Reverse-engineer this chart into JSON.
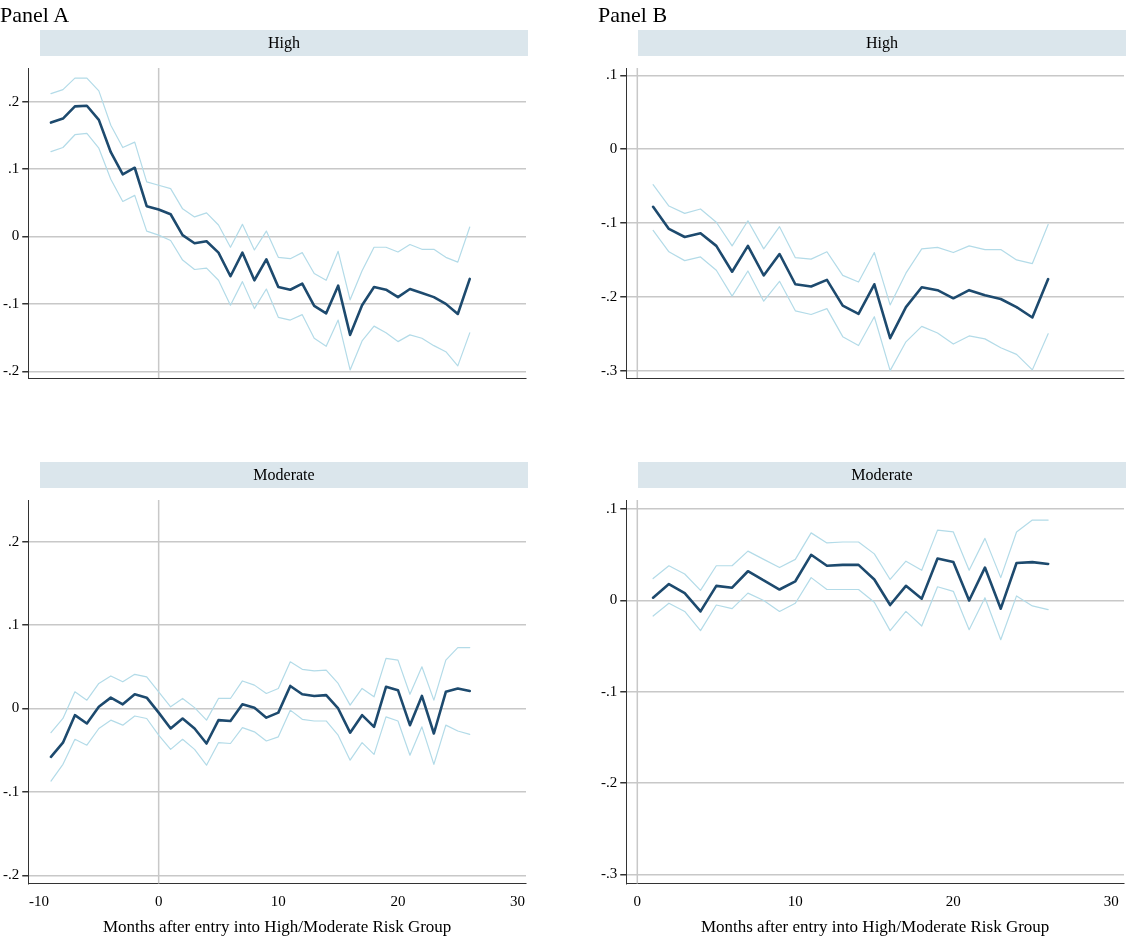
{
  "chart_data": [
    {
      "type": "line",
      "title": "Panel A",
      "subtitle": "High",
      "xlim": [
        -10.9,
        30.7
      ],
      "xticks": [
        -10,
        0,
        10,
        20,
        30
      ],
      "ylim": [
        -0.21,
        0.25
      ],
      "yticks": [
        {
          "value": 0.2,
          "label": ".2"
        },
        {
          "value": 0.1,
          "label": ".1"
        },
        {
          "value": 0,
          "label": "0"
        },
        {
          "value": -0.1,
          "label": "-.1"
        },
        {
          "value": -0.2,
          "label": "-.2"
        }
      ],
      "grid": "y",
      "tick_labels": "y",
      "legend": false,
      "ref_lines": [
        {
          "axis": "x",
          "value": 0,
          "color": "#c8c8c8"
        }
      ],
      "x": [
        -9,
        -8,
        -7,
        -6,
        -5,
        -4,
        -3,
        -2,
        -1,
        0,
        1,
        2,
        3,
        4,
        5,
        6,
        7,
        8,
        9,
        10,
        11,
        12,
        13,
        14,
        15,
        16,
        17,
        18,
        19,
        20,
        21,
        22,
        23,
        24,
        25,
        26
      ],
      "series": [
        {
          "color": "#1d4a6e",
          "values": [
            0.169,
            0.175,
            0.193,
            0.194,
            0.173,
            0.125,
            0.092,
            0.102,
            0.045,
            0.04,
            0.033,
            0.002,
            -0.01,
            -0.007,
            -0.024,
            -0.059,
            -0.024,
            -0.065,
            -0.034,
            -0.075,
            -0.079,
            -0.07,
            -0.103,
            -0.114,
            -0.073,
            -0.146,
            -0.102,
            -0.075,
            -0.079,
            -0.09,
            -0.078,
            -0.084,
            -0.09,
            -0.1,
            -0.115,
            -0.063
          ]
        },
        {
          "color": "#b3dbe8",
          "values": [
            0.212,
            0.218,
            0.235,
            0.235,
            0.216,
            0.165,
            0.132,
            0.14,
            0.081,
            0.076,
            0.071,
            0.041,
            0.029,
            0.035,
            0.017,
            -0.016,
            0.018,
            -0.02,
            0.008,
            -0.031,
            -0.033,
            -0.024,
            -0.055,
            -0.065,
            -0.022,
            -0.094,
            -0.051,
            -0.016,
            -0.016,
            -0.023,
            -0.012,
            -0.019,
            -0.019,
            -0.031,
            -0.038,
            0.014
          ]
        },
        {
          "color": "#b3dbe8",
          "values": [
            0.126,
            0.132,
            0.151,
            0.153,
            0.131,
            0.085,
            0.052,
            0.061,
            0.008,
            0.002,
            -0.006,
            -0.035,
            -0.049,
            -0.047,
            -0.065,
            -0.102,
            -0.067,
            -0.107,
            -0.078,
            -0.12,
            -0.124,
            -0.116,
            -0.151,
            -0.163,
            -0.124,
            -0.198,
            -0.155,
            -0.133,
            -0.143,
            -0.156,
            -0.146,
            -0.151,
            -0.162,
            -0.171,
            -0.192,
            -0.143
          ]
        }
      ]
    },
    {
      "type": "line",
      "title": "Panel B",
      "subtitle": "High",
      "xlim": [
        -0.7,
        30.8
      ],
      "xticks": [
        0,
        10,
        20,
        30
      ],
      "ylim": [
        -0.31,
        0.11
      ],
      "yticks": [
        {
          "value": 0.1,
          "label": ".1"
        },
        {
          "value": 0,
          "label": "0"
        },
        {
          "value": -0.1,
          "label": "-.1"
        },
        {
          "value": -0.2,
          "label": "-.2"
        },
        {
          "value": -0.3,
          "label": "-.3"
        }
      ],
      "grid": "y",
      "tick_labels": "y",
      "legend": false,
      "ref_lines": [
        {
          "axis": "x",
          "value": 0,
          "color": "#c8c8c8"
        }
      ],
      "x": [
        1,
        2,
        3,
        4,
        5,
        6,
        7,
        8,
        9,
        10,
        11,
        12,
        13,
        14,
        15,
        16,
        17,
        18,
        19,
        20,
        21,
        22,
        23,
        24,
        25,
        26
      ],
      "series": [
        {
          "color": "#1d4a6e",
          "values": [
            -0.078,
            -0.108,
            -0.119,
            -0.114,
            -0.131,
            -0.166,
            -0.131,
            -0.171,
            -0.142,
            -0.183,
            -0.186,
            -0.177,
            -0.212,
            -0.223,
            -0.183,
            -0.256,
            -0.214,
            -0.187,
            -0.191,
            -0.202,
            -0.191,
            -0.198,
            -0.203,
            -0.214,
            -0.228,
            -0.176
          ]
        },
        {
          "color": "#b3dbe8",
          "values": [
            -0.048,
            -0.077,
            -0.087,
            -0.081,
            -0.099,
            -0.131,
            -0.097,
            -0.135,
            -0.105,
            -0.147,
            -0.149,
            -0.139,
            -0.171,
            -0.18,
            -0.14,
            -0.211,
            -0.168,
            -0.135,
            -0.133,
            -0.14,
            -0.131,
            -0.136,
            -0.136,
            -0.15,
            -0.155,
            -0.102
          ]
        },
        {
          "color": "#b3dbe8",
          "values": [
            -0.11,
            -0.139,
            -0.151,
            -0.146,
            -0.164,
            -0.199,
            -0.165,
            -0.206,
            -0.179,
            -0.219,
            -0.224,
            -0.216,
            -0.254,
            -0.266,
            -0.227,
            -0.3,
            -0.261,
            -0.24,
            -0.249,
            -0.264,
            -0.253,
            -0.257,
            -0.269,
            -0.278,
            -0.299,
            -0.25
          ]
        }
      ]
    },
    {
      "type": "line",
      "subtitle": "Moderate",
      "xlabel": "Months after entry into High/Moderate Risk Group",
      "xlim": [
        -10.9,
        30.7
      ],
      "xticks": [
        -10,
        0,
        10,
        20,
        30
      ],
      "ylim": [
        -0.21,
        0.25
      ],
      "yticks": [
        {
          "value": 0.2,
          "label": ".2"
        },
        {
          "value": 0.1,
          "label": ".1"
        },
        {
          "value": 0,
          "label": "0"
        },
        {
          "value": -0.1,
          "label": "-.1"
        },
        {
          "value": -0.2,
          "label": "-.2"
        }
      ],
      "grid": "y",
      "legend": false,
      "ref_lines": [
        {
          "axis": "x",
          "value": 0,
          "color": "#c8c8c8"
        }
      ],
      "x": [
        -9,
        -8,
        -7,
        -6,
        -5,
        -4,
        -3,
        -2,
        -1,
        0,
        1,
        2,
        3,
        4,
        5,
        6,
        7,
        8,
        9,
        10,
        11,
        12,
        13,
        14,
        15,
        16,
        17,
        18,
        19,
        20,
        21,
        22,
        23,
        24,
        25,
        26
      ],
      "series": [
        {
          "color": "#1d4a6e",
          "values": [
            -0.058,
            -0.041,
            -0.008,
            -0.018,
            0.002,
            0.013,
            0.005,
            0.017,
            0.013,
            -0.005,
            -0.024,
            -0.012,
            -0.024,
            -0.042,
            -0.014,
            -0.015,
            0.005,
            0.001,
            -0.011,
            -0.005,
            0.027,
            0.017,
            0.015,
            0.016,
            0.0,
            -0.029,
            -0.008,
            -0.022,
            0.026,
            0.022,
            -0.02,
            0.015,
            -0.03,
            0.02,
            0.024,
            0.021
          ]
        },
        {
          "color": "#b3dbe8",
          "values": [
            -0.029,
            -0.012,
            0.02,
            0.01,
            0.03,
            0.039,
            0.032,
            0.041,
            0.038,
            0.02,
            0.002,
            0.012,
            0.001,
            -0.014,
            0.012,
            0.012,
            0.033,
            0.028,
            0.018,
            0.024,
            0.056,
            0.047,
            0.045,
            0.046,
            0.03,
            0.004,
            0.024,
            0.014,
            0.06,
            0.058,
            0.017,
            0.05,
            0.01,
            0.058,
            0.073,
            0.073
          ]
        },
        {
          "color": "#b3dbe8",
          "values": [
            -0.087,
            -0.067,
            -0.037,
            -0.044,
            -0.024,
            -0.014,
            -0.02,
            -0.009,
            -0.012,
            -0.032,
            -0.049,
            -0.037,
            -0.049,
            -0.068,
            -0.041,
            -0.042,
            -0.023,
            -0.028,
            -0.039,
            -0.034,
            -0.002,
            -0.013,
            -0.015,
            -0.015,
            -0.032,
            -0.062,
            -0.041,
            -0.055,
            -0.01,
            -0.015,
            -0.056,
            -0.022,
            -0.067,
            -0.02,
            -0.027,
            -0.031
          ]
        }
      ]
    },
    {
      "type": "line",
      "subtitle": "Moderate",
      "xlabel": "Months after entry into High/Moderate Risk Group",
      "xlim": [
        -0.7,
        30.8
      ],
      "xticks": [
        0,
        10,
        20,
        30
      ],
      "ylim": [
        -0.31,
        0.11
      ],
      "yticks": [
        {
          "value": 0.1,
          "label": ".1"
        },
        {
          "value": 0,
          "label": "0"
        },
        {
          "value": -0.1,
          "label": "-.1"
        },
        {
          "value": -0.2,
          "label": "-.2"
        },
        {
          "value": -0.3,
          "label": "-.3"
        }
      ],
      "grid": "y",
      "legend": false,
      "ref_lines": [
        {
          "axis": "x",
          "value": 0,
          "color": "#c8c8c8"
        }
      ],
      "x": [
        1,
        2,
        3,
        4,
        5,
        6,
        7,
        8,
        9,
        10,
        11,
        12,
        13,
        14,
        15,
        16,
        17,
        18,
        19,
        20,
        21,
        22,
        23,
        24,
        25,
        26
      ],
      "series": [
        {
          "color": "#1d4a6e",
          "values": [
            0.003,
            0.018,
            0.008,
            -0.012,
            0.016,
            0.014,
            0.032,
            0.022,
            0.012,
            0.021,
            0.05,
            0.038,
            0.039,
            0.039,
            0.023,
            -0.005,
            0.016,
            0.002,
            0.046,
            0.042,
            0.0,
            0.036,
            -0.009,
            0.041,
            0.042,
            0.04
          ]
        },
        {
          "color": "#b3dbe8",
          "values": [
            0.024,
            0.038,
            0.029,
            0.011,
            0.038,
            0.038,
            0.054,
            0.045,
            0.036,
            0.045,
            0.074,
            0.063,
            0.064,
            0.064,
            0.051,
            0.023,
            0.043,
            0.033,
            0.077,
            0.075,
            0.033,
            0.068,
            0.025,
            0.075,
            0.088,
            0.088
          ]
        },
        {
          "color": "#b3dbe8",
          "values": [
            -0.017,
            -0.003,
            -0.012,
            -0.033,
            -0.005,
            -0.009,
            0.008,
            0.0,
            -0.012,
            -0.003,
            0.025,
            0.012,
            0.012,
            0.012,
            -0.002,
            -0.033,
            -0.012,
            -0.028,
            0.015,
            0.01,
            -0.032,
            0.003,
            -0.043,
            0.005,
            -0.006,
            -0.01
          ]
        }
      ]
    }
  ]
}
